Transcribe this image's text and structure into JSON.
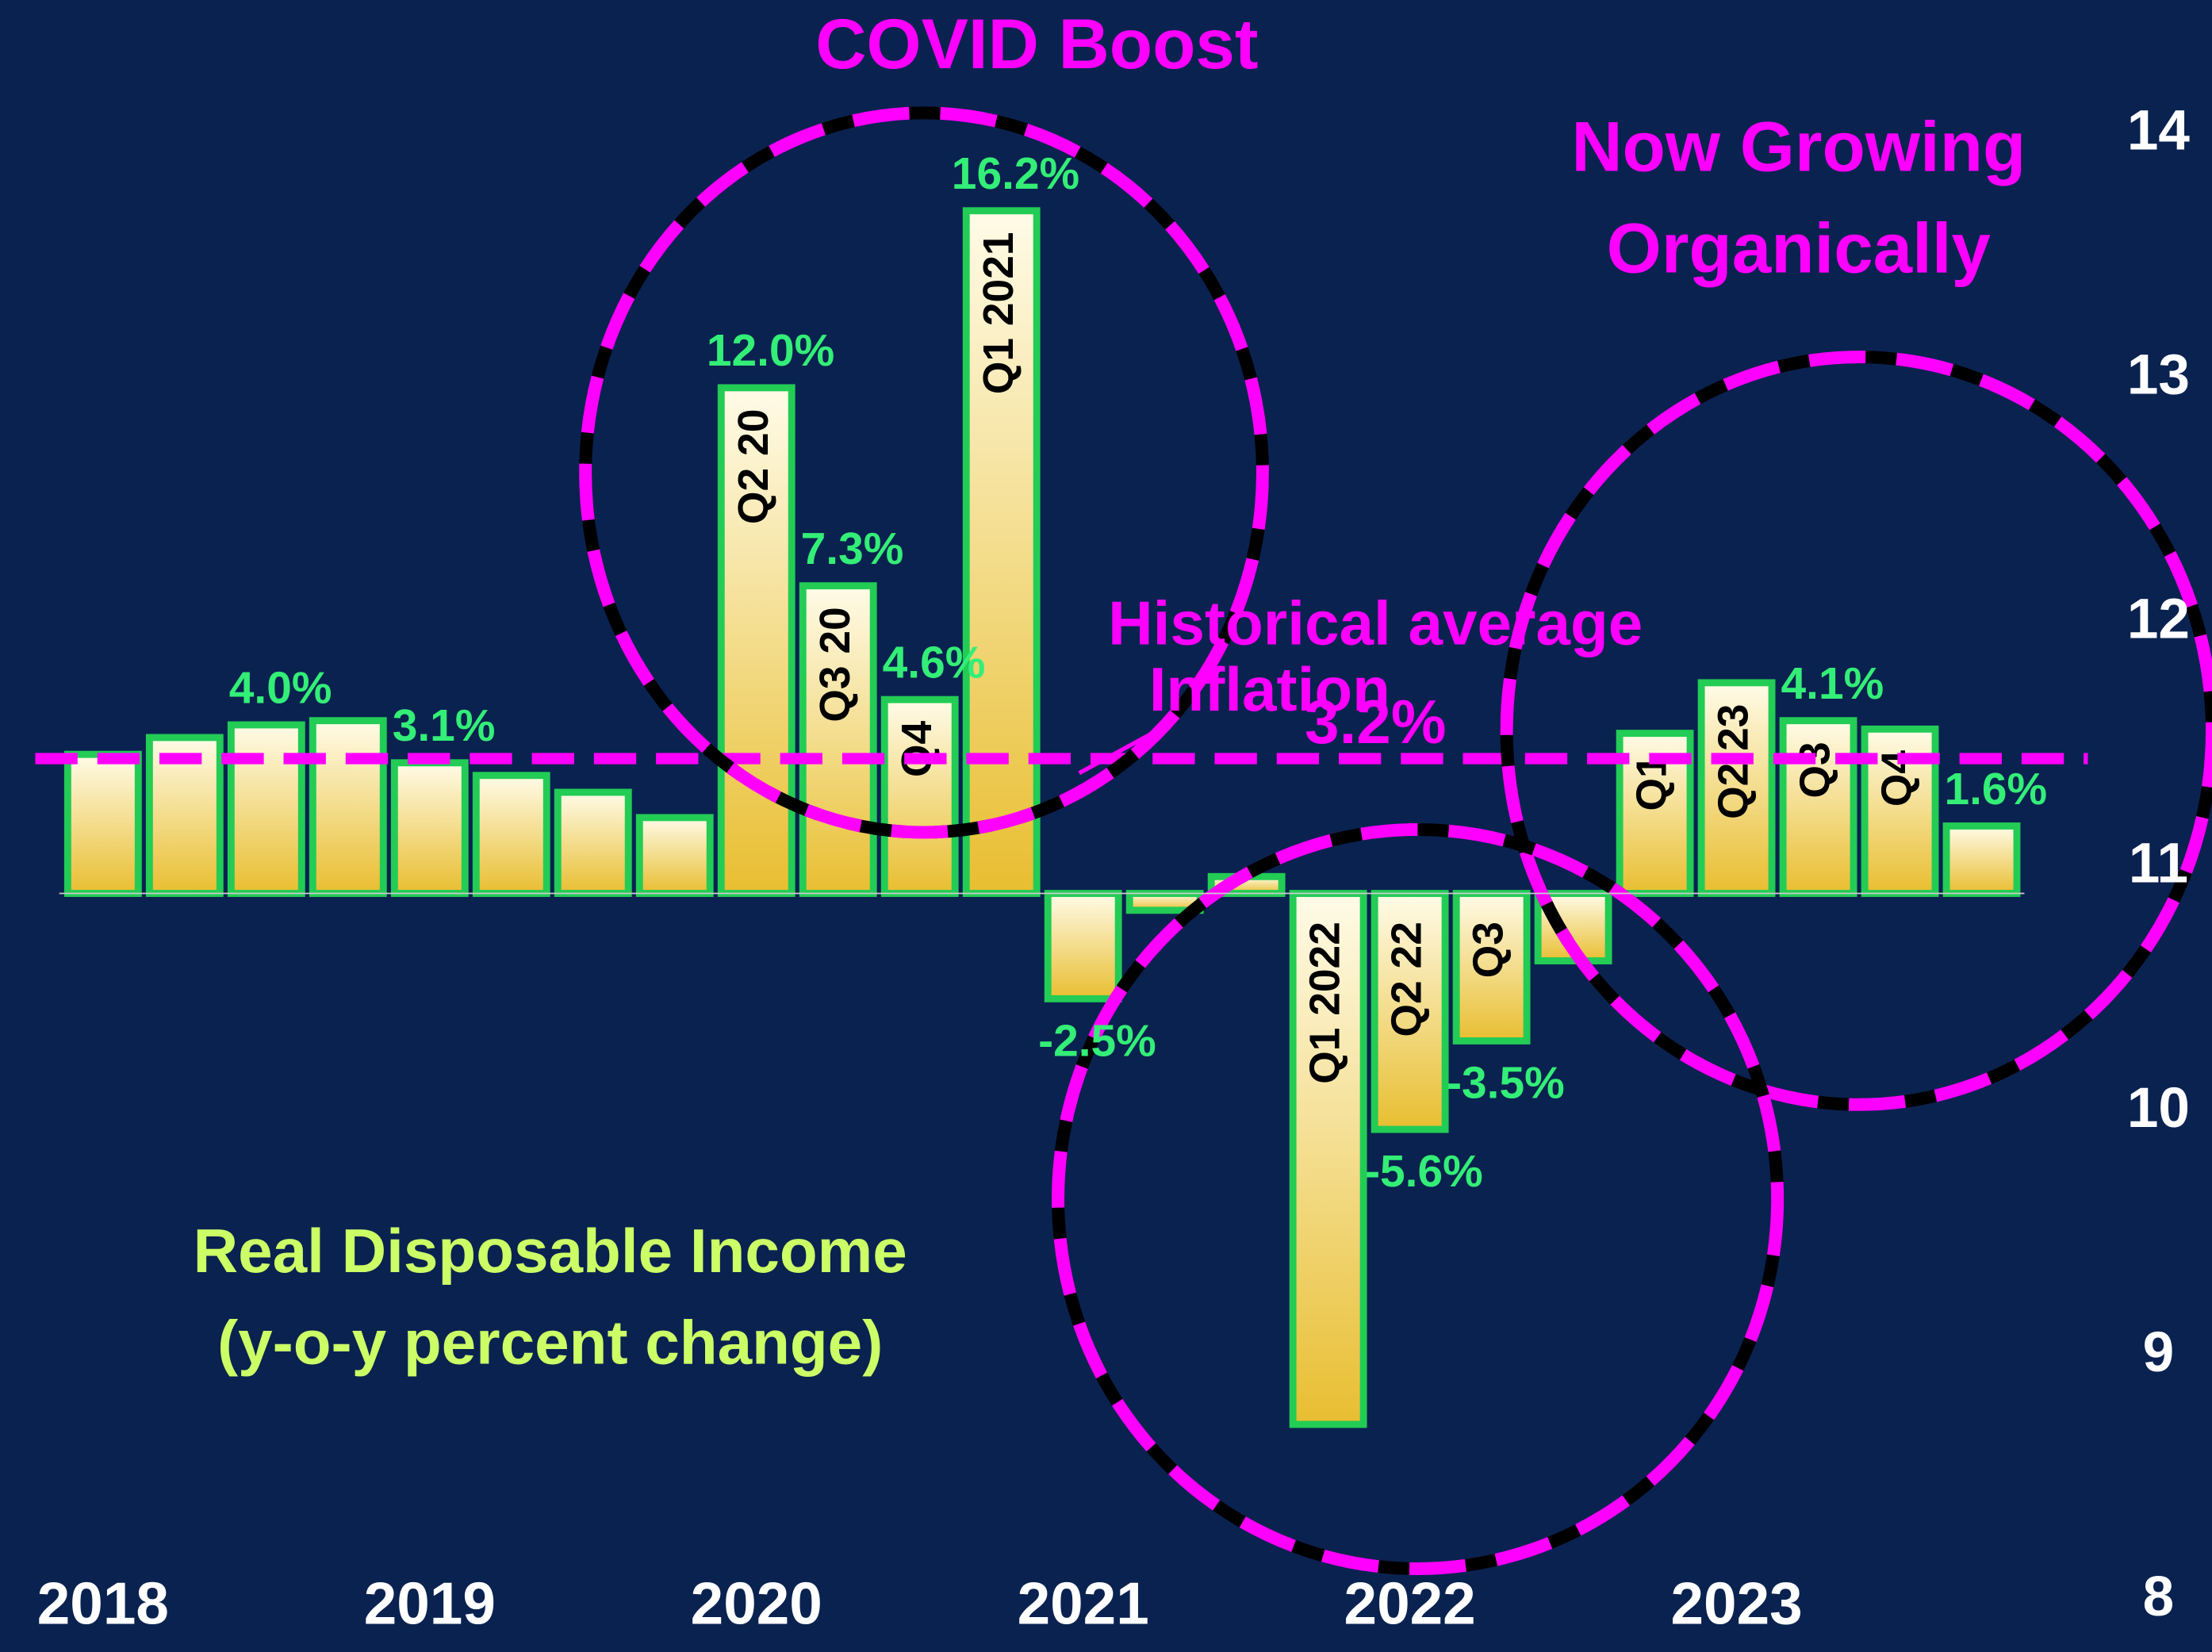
{
  "chart_data": {
    "type": "bar",
    "title": "Real Disposable Income",
    "subtitle": "(y-o-y percent change)",
    "categories": [
      "2018",
      null,
      null,
      null,
      "2019",
      null,
      null,
      null,
      "2020",
      null,
      null,
      null,
      "2021",
      null,
      null,
      null,
      "2022",
      null,
      null,
      null,
      "2023",
      null,
      null,
      null
    ],
    "values": [
      3.3,
      3.7,
      4.0,
      4.1,
      3.1,
      2.8,
      2.4,
      1.8,
      12.0,
      7.3,
      4.6,
      16.2,
      -2.5,
      -0.4,
      0.4,
      -12.6,
      -5.6,
      -3.5,
      -1.6,
      3.8,
      5.0,
      4.1,
      3.9,
      1.6
    ],
    "value_labels": [
      null,
      null,
      "4.0%",
      null,
      "3.1%",
      null,
      null,
      null,
      "12.0%",
      "7.3%",
      "4.6%",
      "16.2%",
      "-2.5%",
      null,
      null,
      null,
      "-5.6%",
      "-3.5%",
      null,
      null,
      null,
      "4.1%",
      null,
      "1.6%"
    ],
    "bar_labels": [
      null,
      null,
      null,
      null,
      null,
      null,
      null,
      null,
      "Q2 20",
      "Q3 20",
      "Q4",
      "Q1 2021",
      null,
      null,
      null,
      "Q1 2022",
      "Q2 22",
      "Q3",
      null,
      "Q1",
      "Q2 23",
      "Q3",
      "Q4",
      null
    ],
    "ylim": [
      -18,
      21.2
    ],
    "y2lim": [
      7.79,
      14.55
    ],
    "y2ticks": [
      8,
      9,
      10,
      11,
      12,
      13,
      14
    ],
    "reference_line": {
      "value": 3.2,
      "label": "3.2%",
      "color": "#ff00ff"
    },
    "annotations": [
      "COVID Boost",
      "Now Growing",
      "Organically",
      "Historical average",
      "Inflation"
    ],
    "color": "#f0c840",
    "edge_color": "#22cc55"
  }
}
